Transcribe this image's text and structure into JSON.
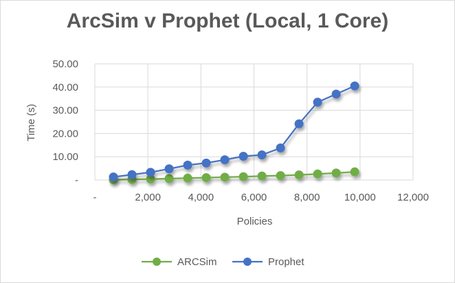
{
  "chart_data": {
    "type": "line",
    "title": "ArcSim v Prophet (Local, 1 Core)",
    "xlabel": "Policies",
    "ylabel": "Time (s)",
    "xlim": [
      0,
      12000
    ],
    "ylim": [
      0,
      50
    ],
    "grid": true,
    "legend_position": "bottom",
    "x_ticks": [
      "-",
      "2,000",
      "4,000",
      "6,000",
      "8,000",
      "10,000",
      "12,000"
    ],
    "y_ticks": [
      "-",
      "10.00",
      "20.00",
      "30.00",
      "40.00",
      "50.00"
    ],
    "x": [
      700,
      1400,
      2100,
      2800,
      3500,
      4200,
      4900,
      5600,
      6300,
      7000,
      7700,
      8400,
      9100,
      9800
    ],
    "series": [
      {
        "name": "ARCSim",
        "color": "#70AD47",
        "values": [
          0.1,
          0.2,
          0.4,
          0.6,
          0.8,
          1.0,
          1.2,
          1.4,
          1.7,
          1.9,
          2.2,
          2.6,
          3.0,
          3.5
        ]
      },
      {
        "name": "Prophet",
        "color": "#4472C4",
        "values": [
          1.3,
          2.3,
          3.3,
          4.8,
          6.4,
          7.3,
          8.7,
          10.2,
          10.8,
          13.8,
          24.2,
          33.5,
          37.0,
          40.5
        ]
      }
    ]
  }
}
